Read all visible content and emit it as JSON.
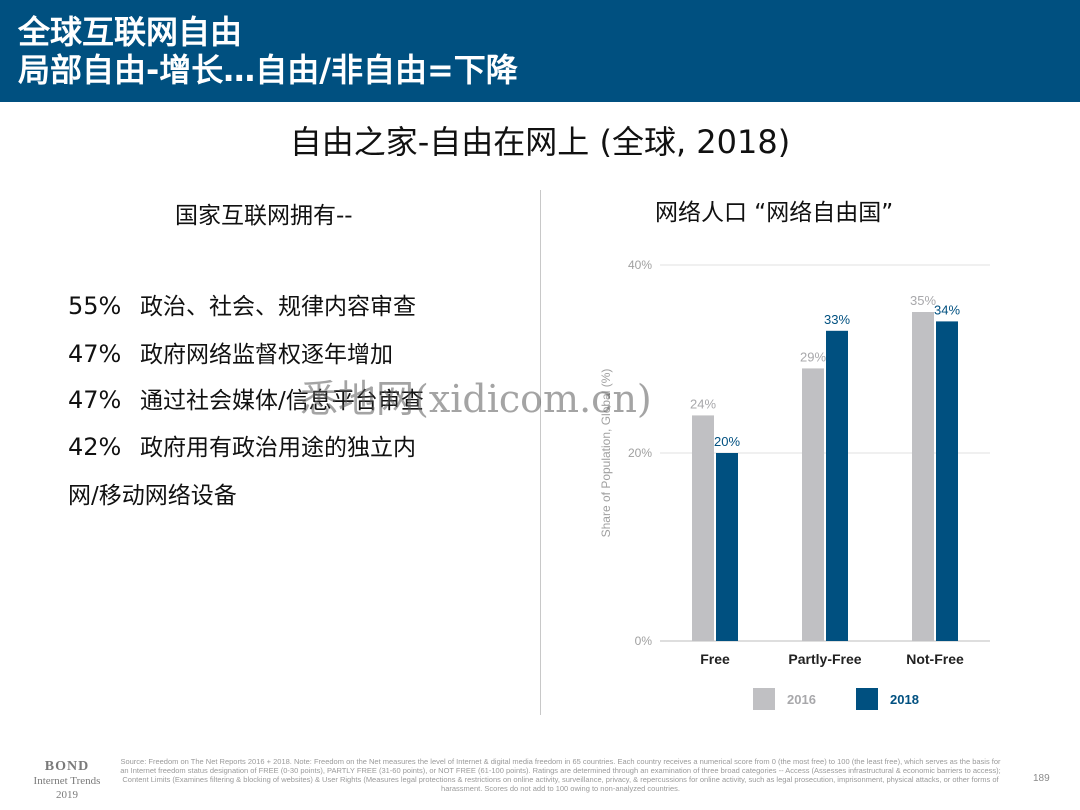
{
  "header": {
    "title_line1": "全球互联网自由",
    "title_line2": "局部自由-增长…自由/非自由=下降"
  },
  "subtitle": "自由之家-自由在网上 (全球, 2018)",
  "left": {
    "heading": "国家互联网拥有--",
    "stats": [
      {
        "pct": "55%",
        "text": "政治、社会、规律内容审查"
      },
      {
        "pct": "47%",
        "text": "政府网络监督权逐年增加"
      },
      {
        "pct": "47%",
        "text": "通过社会媒体/信息平台审查"
      },
      {
        "pct": "42%",
        "text": "政府用有政治用途的独立内"
      }
    ],
    "stat_continuation": "网/移动网络设备"
  },
  "right": {
    "heading": "网络人口 “网络自由国”"
  },
  "chart_data": {
    "type": "bar",
    "categories": [
      "Free",
      "Partly-Free",
      "Not-Free"
    ],
    "series": [
      {
        "name": "2016",
        "values": [
          24,
          29,
          35
        ],
        "labels": [
          "24%",
          "29%",
          "35%"
        ],
        "color": "#c0c0c3"
      },
      {
        "name": "2018",
        "values": [
          20,
          33,
          34
        ],
        "labels": [
          "20%",
          "33%",
          "34%"
        ],
        "color": "#005080"
      }
    ],
    "ylabel": "Share of Population, Global (%)",
    "ylim": [
      0,
      40
    ],
    "yticks": [
      "0%",
      "20%",
      "40%"
    ],
    "grid": true,
    "legend": "bottom"
  },
  "watermark": "悉地网(xidicom.cn)",
  "footer": {
    "brand": "BOND",
    "brand_sub": "Internet Trends",
    "brand_year": "2019",
    "source": "Source: Freedom on The Net Reports 2016 + 2018. Note: Freedom on the Net measures the level of Internet & digital media freedom in 65 countries. Each country receives a numerical score from 0 (the most free) to 100 (the least free), which serves as the basis for an Internet freedom status designation of FREE (0-30 points), PARTLY FREE (31-60 points), or NOT FREE (61-100 points). Ratings are determined through an examination of three broad categories -- Access (Assesses infrastructural & economic barriers to access); Content Limits (Examines filtering & blocking of websites) & User Rights (Measures legal protections & restrictions on online activity, surveillance, privacy, & repercussions for online activity, such as legal prosecution, imprisonment, physical attacks, or other forms of harassment. Scores do not add to 100 owing to non-analyzed countries.",
    "page": "189"
  },
  "colors": {
    "header_bg": "#005080",
    "bar_2016": "#c0c0c3",
    "bar_2018": "#005080"
  }
}
